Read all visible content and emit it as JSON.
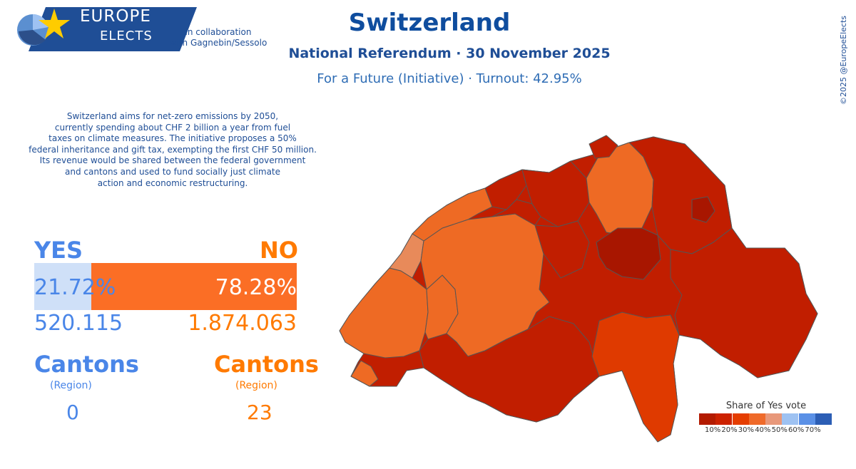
{
  "branding": {
    "name_line1": "EUROPE",
    "name_line2": "ELECTS",
    "collaboration_line1": "in collaboration",
    "collaboration_line2": "with Gagnebin/Sessolo",
    "copyright": "©2025 @EuropeElects"
  },
  "header": {
    "title": "Switzerland",
    "subtitle": "National Referendum · 30 November 2025",
    "question": "For a Future (Initiative) · Turnout: 42.95%"
  },
  "description": [
    "Switzerland aims for net-zero emissions by 2050,",
    "currently spending about CHF 2 billion a year from fuel",
    "taxes on climate measures. The initiative proposes a 50%",
    "federal inheritance and gift tax, exempting the first CHF 50 million.",
    "Its revenue would be shared between the federal government",
    "and cantons and used to fund socially just climate",
    "action and economic restructuring."
  ],
  "results": {
    "yes": {
      "label": "YES",
      "percent": "21.72%",
      "share": 21.72,
      "votes": "520.115",
      "cantons_label": "Cantons",
      "region_label": "(Region)",
      "cantons": "0",
      "color": "#4a86e8"
    },
    "no": {
      "label": "NO",
      "percent": "78.28%",
      "share": 78.28,
      "votes": "1.874.063",
      "cantons_label": "Cantons",
      "region_label": "(Region)",
      "cantons": "23",
      "color": "#ff7a00"
    }
  },
  "legend": {
    "title": "Share of Yes vote",
    "colors": [
      "#b31b00",
      "#cc2200",
      "#e53d00",
      "#ef6a2a",
      "#e8987a",
      "#9ec2f2",
      "#5a90e6",
      "#2c5eb5"
    ],
    "ticks": [
      "10%",
      "20%",
      "30%",
      "40%",
      "50%",
      "60%",
      "70%"
    ]
  },
  "map": {
    "colors": {
      "band_10_20": "#c11e00",
      "band_20_30": "#df3a00",
      "band_30_40": "#ee6a24",
      "band_40_50": "#e88a5a",
      "band_below_10": "#a81600"
    }
  }
}
